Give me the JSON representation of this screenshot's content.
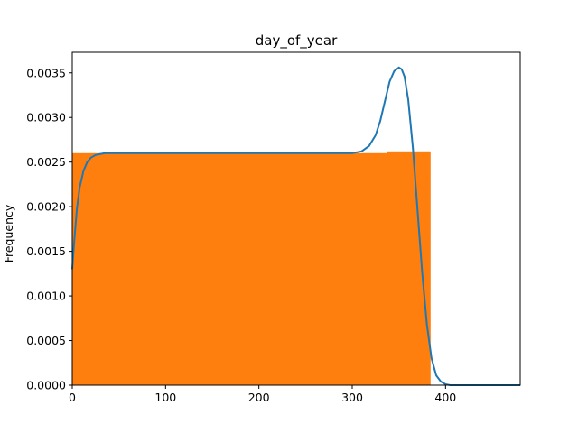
{
  "chart_data": {
    "type": "bar",
    "title": "day_of_year",
    "xlabel": "",
    "ylabel": "Frequency",
    "xlim": [
      0,
      480
    ],
    "ylim": [
      0,
      0.00373
    ],
    "xticks": [
      0,
      100,
      200,
      300,
      400
    ],
    "yticks": [
      0.0,
      0.0005,
      0.001,
      0.0015,
      0.002,
      0.0025,
      0.003,
      0.0035
    ],
    "ytick_labels": [
      "0.0000",
      "0.0005",
      "0.0010",
      "0.0015",
      "0.0020",
      "0.0025",
      "0.0030",
      "0.0035"
    ],
    "grid": false,
    "bar_color": "#ff7f0e",
    "line_color": "#1f77b4",
    "bins": [
      {
        "x0": 0,
        "x1": 337,
        "value": 0.0026
      },
      {
        "x0": 337,
        "x1": 384,
        "value": 0.00262
      }
    ],
    "density_curve": {
      "x": [
        0,
        2,
        5,
        8,
        12,
        16,
        20,
        25,
        30,
        35,
        40,
        50,
        80,
        150,
        250,
        300,
        310,
        318,
        325,
        330,
        335,
        340,
        345,
        350,
        353,
        356,
        360,
        365,
        370,
        375,
        380,
        385,
        390,
        395,
        400,
        405,
        410,
        420,
        440,
        480
      ],
      "y": [
        0.0013,
        0.0016,
        0.00198,
        0.00222,
        0.0024,
        0.0025,
        0.00255,
        0.00258,
        0.00259,
        0.0026,
        0.0026,
        0.0026,
        0.0026,
        0.0026,
        0.0026,
        0.0026,
        0.00262,
        0.00268,
        0.0028,
        0.00296,
        0.00318,
        0.0034,
        0.00352,
        0.00356,
        0.00354,
        0.00346,
        0.0032,
        0.00266,
        0.00196,
        0.00126,
        0.00068,
        0.0003,
        0.00011,
        4e-05,
        1e-05,
        0.0,
        0.0,
        0.0,
        0.0,
        0.0
      ]
    }
  }
}
